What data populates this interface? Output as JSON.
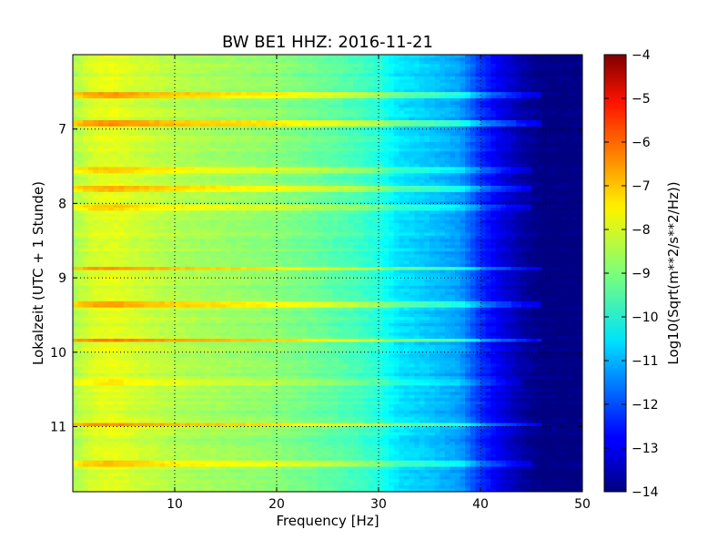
{
  "chart_data": {
    "type": "heatmap",
    "title": "BW BE1 HHZ: 2016-11-21",
    "xlabel": "Frequency [Hz]",
    "ylabel": "Lokalzeit (UTC + 1 Stunde)",
    "xlim": [
      0,
      50
    ],
    "ylim": [
      11.875,
      6.0
    ],
    "y_inverted": true,
    "xticks": [
      10,
      20,
      30,
      40,
      50
    ],
    "yticks": [
      7,
      8,
      9,
      10,
      11
    ],
    "grid": true,
    "colormap": "jet",
    "colorbar": {
      "label": "Log10(Sqrt(m**2/s**2/Hz))",
      "range": [
        -14,
        -4
      ],
      "ticks": [
        -4,
        -5,
        -6,
        -7,
        -8,
        -9,
        -10,
        -11,
        -12,
        -13,
        -14
      ]
    },
    "frequency_profile": {
      "frequency_hz": [
        0,
        2,
        4,
        6,
        10,
        15,
        20,
        25,
        28,
        30,
        32,
        35,
        38,
        40,
        42,
        44,
        46,
        50
      ],
      "log10_amplitude": [
        -8.6,
        -8.1,
        -8.0,
        -8.2,
        -8.5,
        -8.7,
        -8.9,
        -9.3,
        -9.6,
        -9.9,
        -10.5,
        -10.8,
        -11.2,
        -12.3,
        -13.0,
        -13.6,
        -14.0,
        -14.0
      ]
    },
    "bands": [
      {
        "time": 6.55,
        "boost": 1.2,
        "fmax": 46
      },
      {
        "time": 6.93,
        "boost": 1.3,
        "fmax": 46
      },
      {
        "time": 7.55,
        "boost": 0.7,
        "fmax": 45
      },
      {
        "time": 7.8,
        "boost": 1.0,
        "fmax": 45
      },
      {
        "time": 8.05,
        "boost": 0.8,
        "fmax": 45
      },
      {
        "time": 8.88,
        "boost": 1.2,
        "fmax": 46
      },
      {
        "time": 9.35,
        "boost": 1.2,
        "fmax": 46
      },
      {
        "time": 9.83,
        "boost": 1.5,
        "fmax": 46
      },
      {
        "time": 10.4,
        "boost": 0.6,
        "fmax": 44
      },
      {
        "time": 10.98,
        "boost": 1.3,
        "fmax": 46
      },
      {
        "time": 11.5,
        "boost": 0.8,
        "fmax": 45
      }
    ]
  }
}
